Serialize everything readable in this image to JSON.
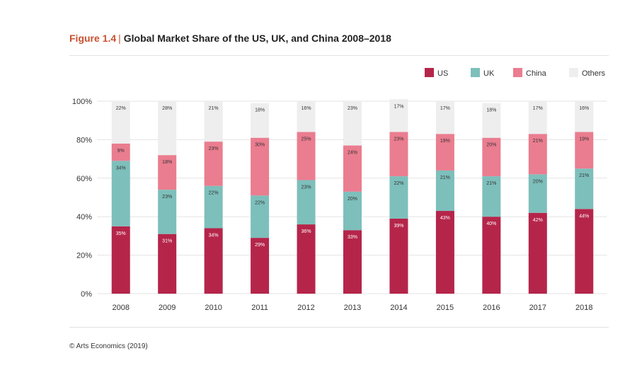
{
  "figure": {
    "label": "Figure 1.4",
    "separator": "|",
    "title": "Global Market Share of the US, UK, and China 2008–2018"
  },
  "source": "© Arts Economics (2019)",
  "colors": {
    "US": "#b5254a",
    "UK": "#7dbfbb",
    "China": "#ea7d8f",
    "Others": "#eeeeee"
  },
  "chart_data": {
    "type": "bar",
    "stacked": true,
    "percent_stacked": true,
    "categories": [
      "2008",
      "2009",
      "2010",
      "2011",
      "2012",
      "2013",
      "2014",
      "2015",
      "2016",
      "2017",
      "2018"
    ],
    "series": [
      {
        "name": "US",
        "values": [
          35,
          31,
          34,
          29,
          36,
          33,
          39,
          43,
          40,
          42,
          44
        ],
        "labels": [
          "35%",
          "31%",
          "34%",
          "29%",
          "36%",
          "33%",
          "39%",
          "43%",
          "40%",
          "42%",
          "44%"
        ]
      },
      {
        "name": "UK",
        "values": [
          34,
          23,
          22,
          22,
          23,
          20,
          22,
          21,
          21,
          20,
          21
        ],
        "labels": [
          "34%",
          "23%",
          "22%",
          "22%",
          "23%",
          "20%",
          "22%",
          "21%",
          "21%",
          "20%",
          "21%"
        ]
      },
      {
        "name": "China",
        "values": [
          9,
          18,
          23,
          30,
          25,
          24,
          23,
          19,
          20,
          21,
          19
        ],
        "labels": [
          "9%",
          "18%",
          "23%",
          "30%",
          "25%",
          "24%",
          "23%",
          "19%",
          "20%",
          "21%",
          "19%"
        ]
      },
      {
        "name": "Others",
        "values": [
          22,
          28,
          21,
          18,
          16,
          23,
          17,
          17,
          18,
          17,
          16
        ],
        "labels": [
          "22%",
          "28%",
          "21%",
          "18%",
          "16%",
          "23%",
          "17%",
          "17%",
          "18%",
          "17%",
          "16%"
        ]
      }
    ],
    "yticks": [
      "0%",
      "20%",
      "40%",
      "60%",
      "80%",
      "100%"
    ],
    "ylim": [
      0,
      100
    ],
    "grid": true,
    "legend": "top-right"
  }
}
